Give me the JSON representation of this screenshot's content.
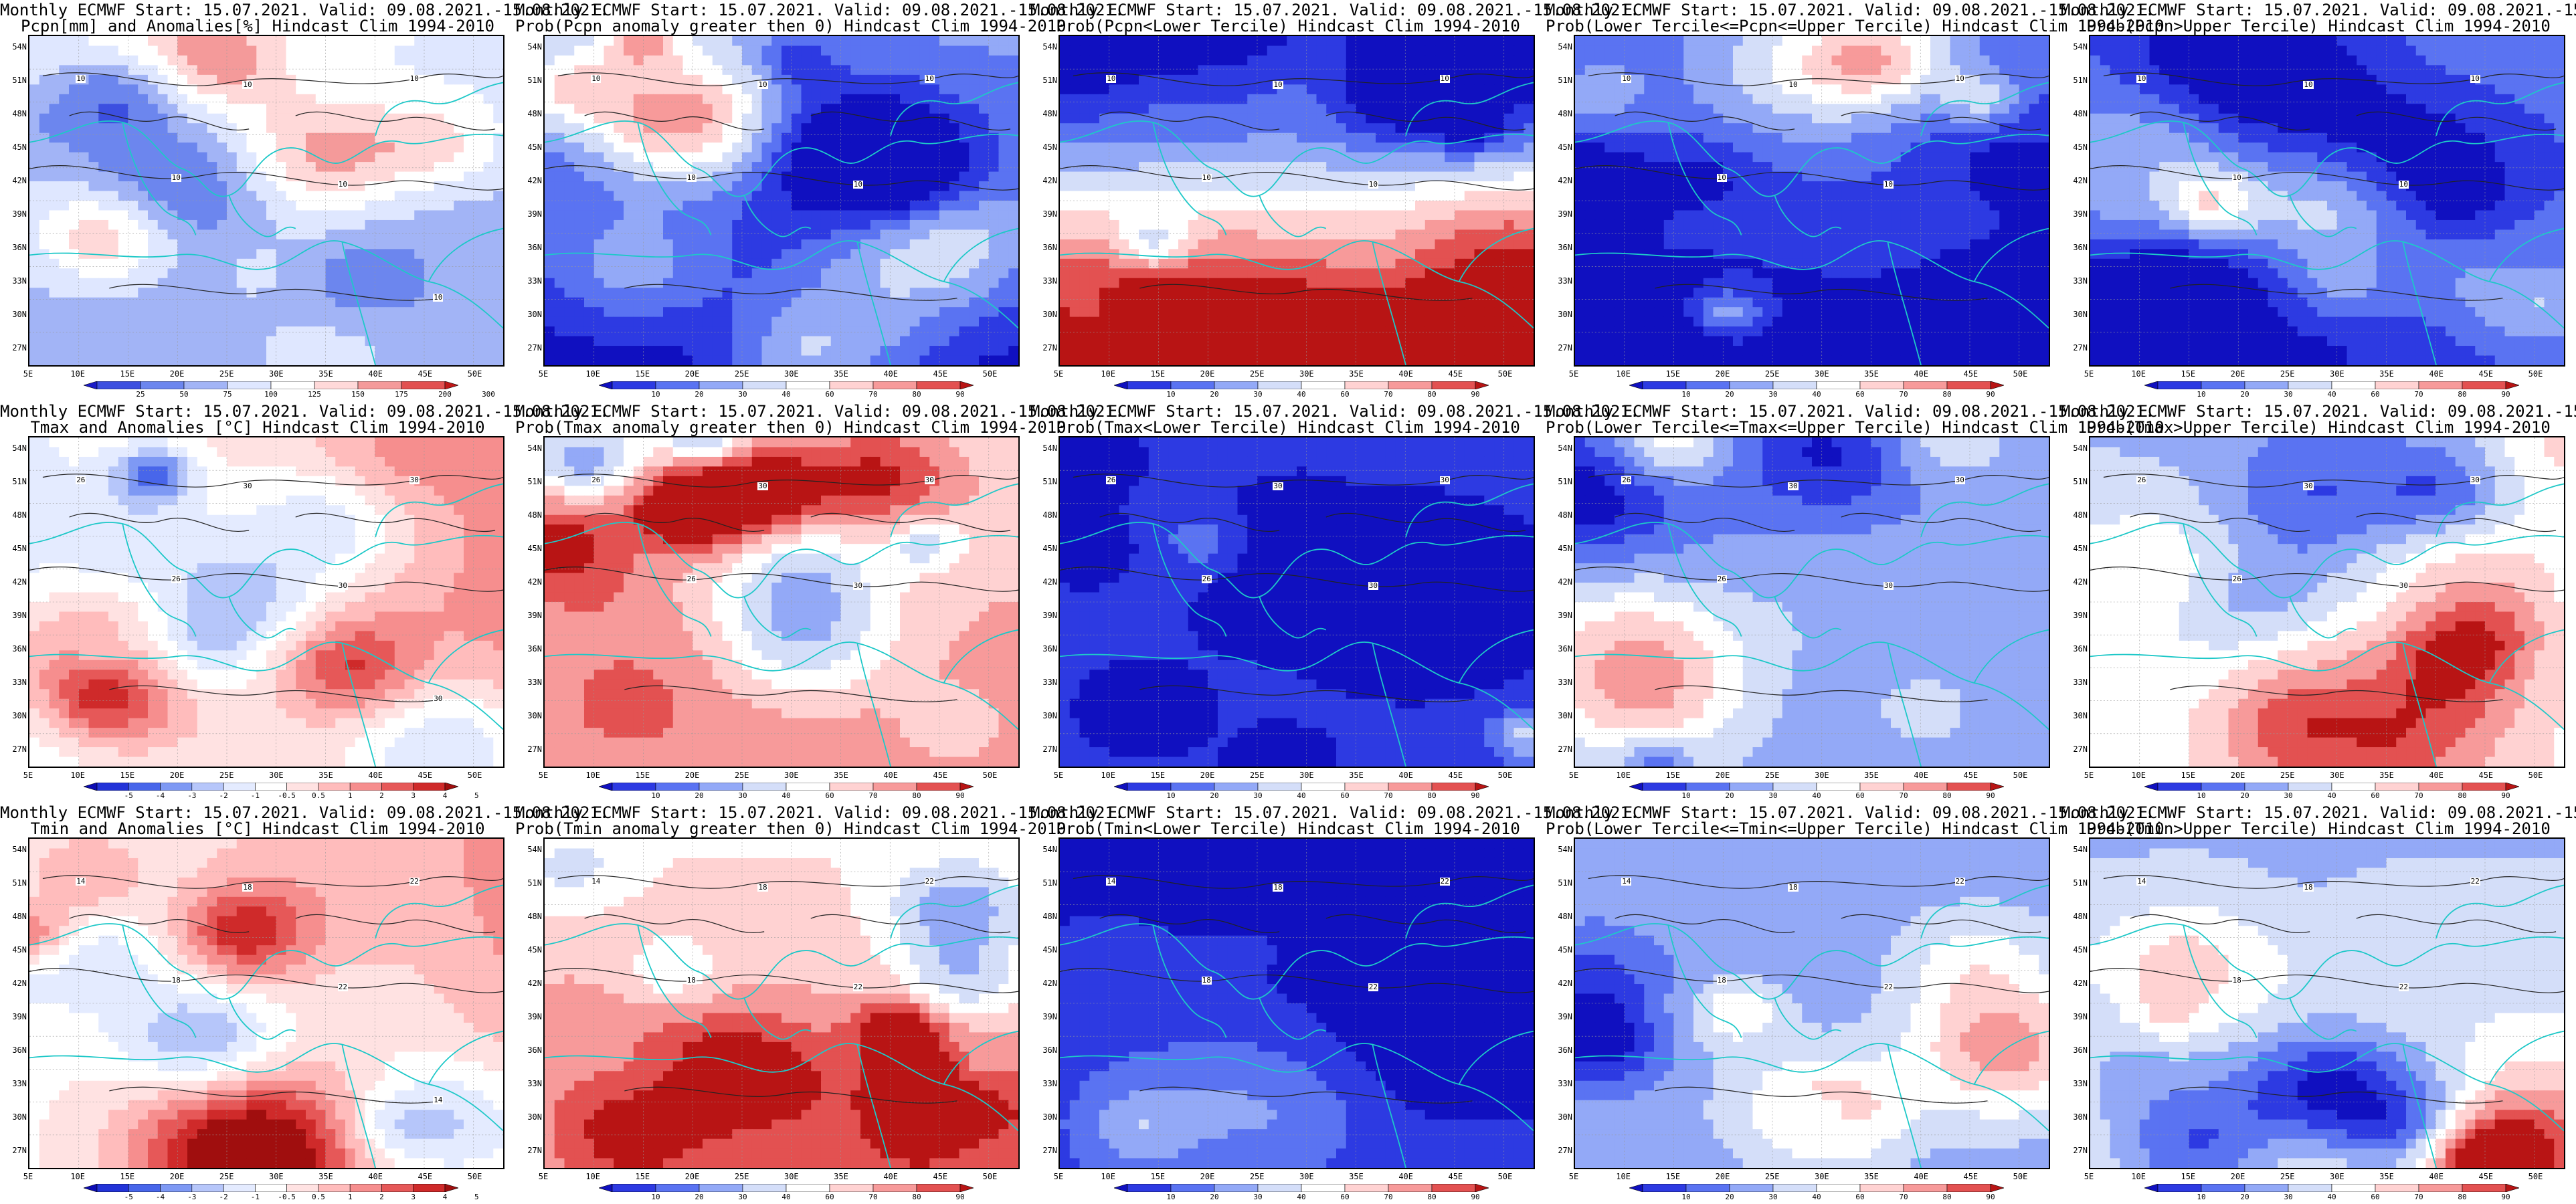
{
  "header_prefix": "Monthly ECMWF Start: 15.07.2021. Valid: 09.08.2021.-15.08.2021.",
  "lat_ticks": [
    "54N",
    "51N",
    "48N",
    "45N",
    "42N",
    "39N",
    "36N",
    "33N",
    "30N",
    "27N"
  ],
  "lon_ticks": [
    "5E",
    "10E",
    "15E",
    "20E",
    "25E",
    "30E",
    "35E",
    "40E",
    "45E",
    "50E"
  ],
  "colorbars": {
    "pcpn_anom": {
      "labels": [
        "25",
        "50",
        "75",
        "100",
        "125",
        "150",
        "175",
        "200",
        "300"
      ],
      "colors": [
        "#1c1cc8",
        "#3c4fe0",
        "#6c86ee",
        "#a2b4f6",
        "#dfe7ff",
        "#ffffff",
        "#ffd9d9",
        "#f49a9a",
        "#e25050",
        "#c01818"
      ]
    },
    "prob": {
      "labels": [
        "10",
        "20",
        "30",
        "40",
        "60",
        "70",
        "80",
        "90"
      ],
      "colors": [
        "#1010c0",
        "#2d3ae2",
        "#5a73f2",
        "#93a9f7",
        "#d4def9",
        "#ffffff",
        "#ffd2d2",
        "#f79a9a",
        "#e35151",
        "#b81414"
      ]
    },
    "temp_anom": {
      "labels": [
        "-5",
        "-4",
        "-3",
        "-2",
        "-1",
        "-0.5",
        "0.5",
        "1",
        "2",
        "3",
        "4",
        "5"
      ],
      "colors": [
        "#0c0cb4",
        "#2233d8",
        "#4866ea",
        "#7e99f4",
        "#b6c6fa",
        "#e4ebff",
        "#ffffff",
        "#ffe2e2",
        "#ffbcbc",
        "#f68e8e",
        "#e65858",
        "#cf2a2a",
        "#a00e0e"
      ]
    }
  },
  "panels": [
    {
      "title": "Pcpn[mm] and Anomalies[%] Hindcast Clim 1994-2010",
      "cbar": "pcpn_anom",
      "fill": "pcpn_anom",
      "contour_labels": [
        "10",
        "10",
        "10",
        "10",
        "10",
        "10"
      ]
    },
    {
      "title": "Prob(Pcpn anomaly greater then 0) Hindcast Clim 1994-2010",
      "cbar": "prob",
      "fill": "pcpn_prob",
      "contour_labels": [
        "10",
        "10",
        "10",
        "10",
        "10"
      ]
    },
    {
      "title": "Prob(Pcpn<Lower Tercile) Hindcast Clim 1994-2010",
      "cbar": "prob",
      "fill": "pcpn_low",
      "contour_labels": [
        "10",
        "10",
        "10",
        "10",
        "10"
      ]
    },
    {
      "title": "Prob(Lower Tercile<=Pcpn<=Upper Tercile) Hindcast Clim 1994-2010",
      "cbar": "prob",
      "fill": "pcpn_mid",
      "contour_labels": [
        "10",
        "10",
        "10",
        "10",
        "10"
      ]
    },
    {
      "title": "Prob(Pcpn>Upper Tercile) Hindcast Clim 1994-2010",
      "cbar": "prob",
      "fill": "pcpn_high",
      "contour_labels": [
        "10",
        "10",
        "10",
        "10",
        "10"
      ]
    },
    {
      "title": "Tmax and Anomalies [°C] Hindcast Clim 1994-2010",
      "cbar": "temp_anom",
      "fill": "tmax_anom",
      "contour_labels": [
        "26",
        "30",
        "30",
        "26",
        "30",
        "30"
      ]
    },
    {
      "title": "Prob(Tmax anomaly greater then 0) Hindcast Clim 1994-2010",
      "cbar": "prob",
      "fill": "tmax_prob",
      "contour_labels": [
        "26",
        "30",
        "30",
        "26",
        "30"
      ]
    },
    {
      "title": "Prob(Tmax<Lower Tercile) Hindcast Clim 1994-2010",
      "cbar": "prob",
      "fill": "tmax_low",
      "contour_labels": [
        "26",
        "30",
        "30",
        "26",
        "30"
      ]
    },
    {
      "title": "Prob(Lower Tercile<=Tmax<=Upper Tercile) Hindcast Clim 1994-2010",
      "cbar": "prob",
      "fill": "tmax_mid",
      "contour_labels": [
        "26",
        "30",
        "30",
        "26",
        "30"
      ]
    },
    {
      "title": "Prob(Tmax>Upper Tercile) Hindcast Clim 1994-2010",
      "cbar": "prob",
      "fill": "tmax_high",
      "contour_labels": [
        "26",
        "30",
        "30",
        "26",
        "30"
      ]
    },
    {
      "title": "Tmin and Anomalies [°C] Hindcast Clim 1994-2010",
      "cbar": "temp_anom",
      "fill": "tmin_anom",
      "contour_labels": [
        "14",
        "18",
        "22",
        "18",
        "22",
        "14"
      ]
    },
    {
      "title": "Prob(Tmin anomaly greater then 0) Hindcast Clim 1994-2010",
      "cbar": "prob",
      "fill": "tmin_prob",
      "contour_labels": [
        "14",
        "18",
        "22",
        "18",
        "22"
      ]
    },
    {
      "title": "Prob(Tmin<Lower Tercile) Hindcast Clim 1994-2010",
      "cbar": "prob",
      "fill": "tmin_low",
      "contour_labels": [
        "14",
        "18",
        "22",
        "18",
        "22"
      ]
    },
    {
      "title": "Prob(Lower Tercile<=Tmin<=Upper Tercile) Hindcast Clim 1994-2010",
      "cbar": "prob",
      "fill": "tmin_mid",
      "contour_labels": [
        "14",
        "18",
        "22",
        "18",
        "22"
      ]
    },
    {
      "title": "Prob(Tmin>Upper Tercile) Hindcast Clim 1994-2010",
      "cbar": "prob",
      "fill": "tmin_high",
      "contour_labels": [
        "14",
        "18",
        "22",
        "18",
        "22"
      ]
    }
  ]
}
